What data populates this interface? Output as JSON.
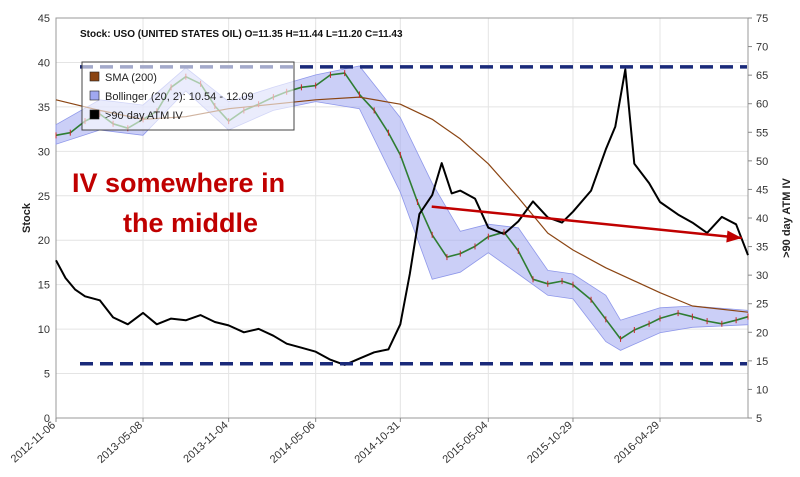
{
  "chart_data": {
    "type": "line",
    "header": "Stock: USO (UNITED STATES OIL) O=11.35 H=11.44 L=11.20 C=11.43",
    "ylabel_left": "Stock",
    "ylabel_right": ">90 day ATM IV",
    "ylim_left": [
      0,
      45
    ],
    "ylim_right": [
      5,
      75
    ],
    "left_ticks": [
      0,
      5,
      10,
      15,
      20,
      25,
      30,
      35,
      40,
      45
    ],
    "right_ticks": [
      5,
      10,
      15,
      20,
      25,
      30,
      35,
      40,
      45,
      50,
      55,
      60,
      65,
      70,
      75
    ],
    "x_ticks": [
      "2012-11-06",
      "2013-05-08",
      "2013-11-04",
      "2014-05-06",
      "2014-10-31",
      "2015-05-04",
      "2015-10-29",
      "2016-04-29"
    ],
    "grid": true,
    "legend": {
      "placement": "top-left",
      "entries": [
        {
          "label": "SMA (200)",
          "color": "#8b4513"
        },
        {
          "label": "Bollinger (20, 2): 10.54 - 12.09",
          "color": "#a0a8f0"
        },
        {
          "label": ">90 day ATM IV",
          "color": "#000000"
        }
      ]
    },
    "reference_lines": [
      {
        "axis": "left",
        "value": 39.5,
        "color": "#1a2a7a",
        "style": "dashed"
      },
      {
        "axis": "left",
        "value": 6.1,
        "color": "#1a2a7a",
        "style": "dashed"
      }
    ],
    "annotation": {
      "lines": [
        "IV somewhere in",
        "the middle"
      ],
      "color": "#c00000",
      "arrow_from_date": "2015-01-05",
      "arrow_from_value": 42,
      "arrow_to_date": "2016-10-18",
      "arrow_to_value": 36.5
    },
    "series": [
      {
        "name": "Stock",
        "axis": "left",
        "color": "#2e7d32",
        "points": [
          [
            "2012-11-06",
            31.8
          ],
          [
            "2012-12-06",
            32.1
          ],
          [
            "2013-01-06",
            33.4
          ],
          [
            "2013-02-06",
            34.2
          ],
          [
            "2013-03-06",
            33.1
          ],
          [
            "2013-04-06",
            32.6
          ],
          [
            "2013-05-08",
            33.6
          ],
          [
            "2013-06-06",
            34.5
          ],
          [
            "2013-07-06",
            37.2
          ],
          [
            "2013-08-06",
            38.4
          ],
          [
            "2013-09-06",
            37.6
          ],
          [
            "2013-10-06",
            35.1
          ],
          [
            "2013-11-04",
            33.4
          ],
          [
            "2013-12-06",
            34.6
          ],
          [
            "2014-01-06",
            35.3
          ],
          [
            "2014-02-06",
            36.1
          ],
          [
            "2014-03-06",
            36.7
          ],
          [
            "2014-04-06",
            37.2
          ],
          [
            "2014-05-06",
            37.4
          ],
          [
            "2014-06-06",
            38.6
          ],
          [
            "2014-07-06",
            38.8
          ],
          [
            "2014-08-06",
            36.4
          ],
          [
            "2014-09-06",
            34.6
          ],
          [
            "2014-10-06",
            32.1
          ],
          [
            "2014-10-31",
            29.6
          ],
          [
            "2014-12-06",
            24.3
          ],
          [
            "2015-01-06",
            20.6
          ],
          [
            "2015-02-06",
            18.1
          ],
          [
            "2015-03-06",
            18.5
          ],
          [
            "2015-04-06",
            19.3
          ],
          [
            "2015-05-04",
            20.4
          ],
          [
            "2015-06-06",
            20.9
          ],
          [
            "2015-07-06",
            18.8
          ],
          [
            "2015-08-06",
            15.6
          ],
          [
            "2015-09-06",
            15.1
          ],
          [
            "2015-10-06",
            15.4
          ],
          [
            "2015-10-29",
            15.0
          ],
          [
            "2015-12-06",
            13.3
          ],
          [
            "2016-01-06",
            11.1
          ],
          [
            "2016-02-06",
            8.9
          ],
          [
            "2016-03-06",
            9.9
          ],
          [
            "2016-04-06",
            10.6
          ],
          [
            "2016-04-29",
            11.2
          ],
          [
            "2016-06-06",
            11.8
          ],
          [
            "2016-07-06",
            11.4
          ],
          [
            "2016-08-06",
            10.9
          ],
          [
            "2016-09-06",
            10.6
          ],
          [
            "2016-10-06",
            11.0
          ],
          [
            "2016-10-31",
            11.4
          ]
        ]
      },
      {
        "name": "SMA (200)",
        "axis": "left",
        "color": "#8b4513",
        "points": [
          [
            "2012-11-06",
            35.8
          ],
          [
            "2013-02-06",
            34.6
          ],
          [
            "2013-05-08",
            33.6
          ],
          [
            "2013-08-06",
            33.9
          ],
          [
            "2013-11-04",
            34.8
          ],
          [
            "2014-02-06",
            35.3
          ],
          [
            "2014-05-06",
            35.8
          ],
          [
            "2014-08-06",
            36.1
          ],
          [
            "2014-10-31",
            35.3
          ],
          [
            "2015-01-06",
            33.6
          ],
          [
            "2015-03-06",
            31.4
          ],
          [
            "2015-05-04",
            28.6
          ],
          [
            "2015-07-06",
            24.8
          ],
          [
            "2015-09-06",
            20.8
          ],
          [
            "2015-10-29",
            18.9
          ],
          [
            "2016-01-06",
            16.9
          ],
          [
            "2016-04-29",
            14.1
          ],
          [
            "2016-07-06",
            12.6
          ],
          [
            "2016-10-31",
            11.9
          ]
        ]
      },
      {
        "name": ">90 day ATM IV",
        "axis": "right",
        "color": "#000000",
        "points": [
          [
            "2012-11-06",
            32.6
          ],
          [
            "2012-11-26",
            29.5
          ],
          [
            "2012-12-16",
            27.5
          ],
          [
            "2013-01-06",
            26.3
          ],
          [
            "2013-02-06",
            25.6
          ],
          [
            "2013-03-06",
            22.6
          ],
          [
            "2013-04-06",
            21.4
          ],
          [
            "2013-05-08",
            23.4
          ],
          [
            "2013-06-06",
            21.4
          ],
          [
            "2013-07-06",
            22.4
          ],
          [
            "2013-08-06",
            22.1
          ],
          [
            "2013-09-06",
            23.0
          ],
          [
            "2013-10-06",
            21.8
          ],
          [
            "2013-11-04",
            21.2
          ],
          [
            "2013-12-06",
            20.0
          ],
          [
            "2014-01-06",
            20.6
          ],
          [
            "2014-02-06",
            19.4
          ],
          [
            "2014-03-06",
            18.0
          ],
          [
            "2014-04-06",
            17.3
          ],
          [
            "2014-05-06",
            16.6
          ],
          [
            "2014-06-06",
            15.2
          ],
          [
            "2014-07-06",
            14.3
          ],
          [
            "2014-08-06",
            15.4
          ],
          [
            "2014-09-06",
            16.5
          ],
          [
            "2014-10-06",
            17.0
          ],
          [
            "2014-10-31",
            21.4
          ],
          [
            "2014-11-20",
            30.2
          ],
          [
            "2014-12-10",
            40.7
          ],
          [
            "2015-01-06",
            44.0
          ],
          [
            "2015-01-26",
            49.6
          ],
          [
            "2015-02-16",
            44.3
          ],
          [
            "2015-03-06",
            44.8
          ],
          [
            "2015-04-06",
            43.4
          ],
          [
            "2015-05-04",
            38.3
          ],
          [
            "2015-06-06",
            37.2
          ],
          [
            "2015-07-06",
            39.4
          ],
          [
            "2015-08-06",
            42.9
          ],
          [
            "2015-09-06",
            40.1
          ],
          [
            "2015-10-06",
            39.2
          ],
          [
            "2015-10-29",
            41.1
          ],
          [
            "2015-12-06",
            44.8
          ],
          [
            "2016-01-06",
            52.0
          ],
          [
            "2016-01-26",
            56.0
          ],
          [
            "2016-02-16",
            66.0
          ],
          [
            "2016-03-06",
            49.5
          ],
          [
            "2016-04-06",
            46.1
          ],
          [
            "2016-04-29",
            42.8
          ],
          [
            "2016-06-06",
            40.6
          ],
          [
            "2016-07-06",
            39.2
          ],
          [
            "2016-08-06",
            37.4
          ],
          [
            "2016-09-06",
            40.2
          ],
          [
            "2016-10-06",
            38.9
          ],
          [
            "2016-10-31",
            33.5
          ]
        ]
      },
      {
        "name": "Bollinger upper",
        "axis": "left",
        "color": "#a0a8f0",
        "points": [
          [
            "2012-11-06",
            33.0
          ],
          [
            "2013-02-06",
            35.8
          ],
          [
            "2013-05-08",
            35.2
          ],
          [
            "2013-08-06",
            39.4
          ],
          [
            "2013-11-04",
            35.6
          ],
          [
            "2014-02-06",
            37.2
          ],
          [
            "2014-05-06",
            38.6
          ],
          [
            "2014-08-06",
            39.6
          ],
          [
            "2014-10-31",
            33.8
          ],
          [
            "2015-01-06",
            26.4
          ],
          [
            "2015-03-06",
            21.0
          ],
          [
            "2015-05-04",
            21.8
          ],
          [
            "2015-07-06",
            21.4
          ],
          [
            "2015-09-06",
            16.6
          ],
          [
            "2015-10-29",
            16.2
          ],
          [
            "2016-01-06",
            13.8
          ],
          [
            "2016-02-06",
            11.0
          ],
          [
            "2016-04-29",
            12.4
          ],
          [
            "2016-07-06",
            12.6
          ],
          [
            "2016-10-31",
            12.1
          ]
        ]
      },
      {
        "name": "Bollinger lower",
        "axis": "left",
        "color": "#a0a8f0",
        "points": [
          [
            "2012-11-06",
            30.8
          ],
          [
            "2013-02-06",
            32.4
          ],
          [
            "2013-05-08",
            31.8
          ],
          [
            "2013-08-06",
            36.8
          ],
          [
            "2013-11-04",
            32.4
          ],
          [
            "2014-02-06",
            34.6
          ],
          [
            "2014-05-06",
            35.6
          ],
          [
            "2014-08-06",
            34.8
          ],
          [
            "2014-10-31",
            25.4
          ],
          [
            "2015-01-06",
            15.6
          ],
          [
            "2015-03-06",
            16.4
          ],
          [
            "2015-05-04",
            18.6
          ],
          [
            "2015-07-06",
            16.2
          ],
          [
            "2015-09-06",
            13.8
          ],
          [
            "2015-10-29",
            13.4
          ],
          [
            "2016-01-06",
            8.6
          ],
          [
            "2016-02-06",
            7.6
          ],
          [
            "2016-04-29",
            9.6
          ],
          [
            "2016-07-06",
            10.2
          ],
          [
            "2016-10-31",
            10.5
          ]
        ]
      }
    ]
  }
}
